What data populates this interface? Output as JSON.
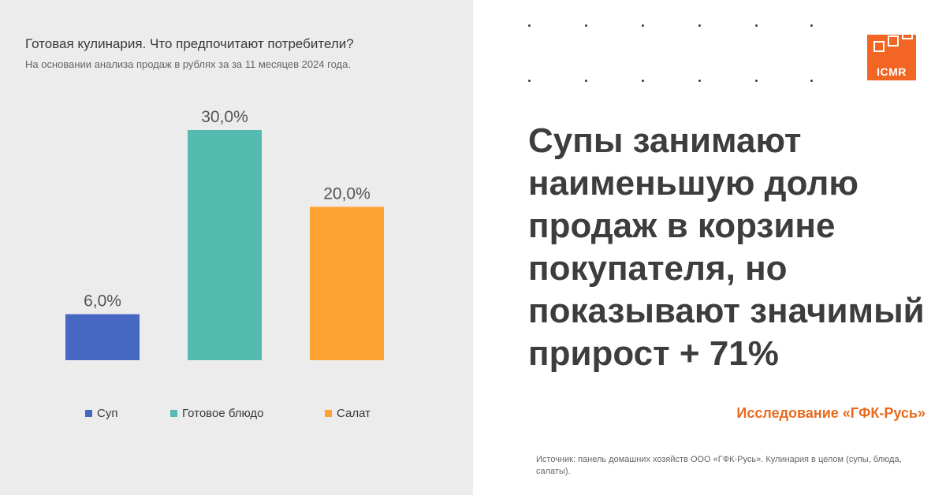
{
  "chart_data": {
    "type": "bar",
    "title": "Готовая кулинария. Что предпочитают потребители?",
    "subtitle": "На основании анализа продаж в рублях за за 11 месяцев 2024 года.",
    "categories": [
      "Суп",
      "Готовое блюдо",
      "Салат"
    ],
    "values": [
      6.0,
      30.0,
      20.0
    ],
    "value_labels": [
      "6,0%",
      "30,0%",
      "20,0%"
    ],
    "colors": [
      "#4668c3",
      "#55bbb0",
      "#ffa234"
    ],
    "ylim": [
      0,
      30
    ],
    "grid": false,
    "legend_position": "bottom"
  },
  "logo": {
    "text": "ICMR",
    "color": "#f26522"
  },
  "headline": "Супы занимают наименьшую долю продаж в корзине покупателя, но показывают значимый прирост + 71%",
  "study_label": "Исследование «ГФК-Русь»",
  "source": "Источник: панель домашних хозяйств ООО «ГФК-Русь». Кулинария в целом (супы, блюда, салаты)."
}
